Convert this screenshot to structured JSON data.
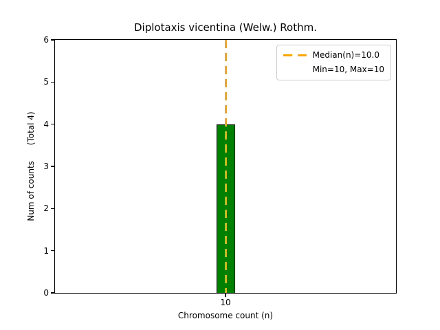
{
  "chart_data": {
    "type": "bar",
    "title": "Diplotaxis vicentina (Welw.) Rothm.",
    "xlabel": "Chromosome count (n)",
    "ylabel": "Num of counts      (Total 4)",
    "categories": [
      "10"
    ],
    "values": [
      4
    ],
    "total": 4,
    "ylim": [
      0,
      6
    ],
    "yticks": [
      0,
      1,
      2,
      3,
      4,
      5,
      6
    ],
    "xticks": [
      "10"
    ],
    "grid": false,
    "bar_color": "#008000",
    "bar_edge_color": "#000000",
    "median_line": {
      "x": "10",
      "value": 10.0,
      "color": "#FFA500",
      "style": "dashed"
    },
    "legend": {
      "position": "upper right",
      "entries": [
        {
          "label": "Median(n)=10.0",
          "sample": "dashed-line",
          "color": "#FFA500"
        },
        {
          "label": "Min=10, Max=10",
          "sample": "none",
          "color": null
        }
      ]
    }
  }
}
